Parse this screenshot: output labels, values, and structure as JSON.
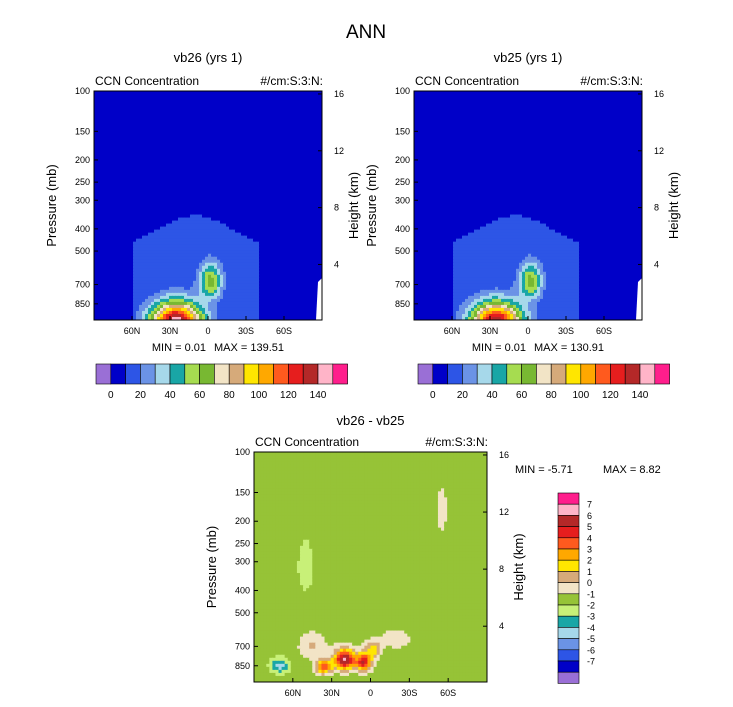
{
  "page_title": "ANN",
  "colors": {
    "background": "#ffffff",
    "conc_scale": [
      "#9a6fd6",
      "#0000c8",
      "#2d55e6",
      "#6b93e6",
      "#a6d8ea",
      "#19a6a6",
      "#a6dc50",
      "#78b832",
      "#f2e4c6",
      "#d6aa7a",
      "#ffe600",
      "#ffa800",
      "#ff5a1e",
      "#e61e1e",
      "#b42828",
      "#ffb4c8",
      "#ff1e8c"
    ],
    "diff_scale": [
      "#9a6fd6",
      "#0000c8",
      "#2d55e6",
      "#6b93e6",
      "#a6d8ea",
      "#19a6a6",
      "#c8f078",
      "#96c337",
      "#f2e4c6",
      "#d6aa7a",
      "#ffe600",
      "#ffa800",
      "#ff5a1e",
      "#e61e1e",
      "#b42828",
      "#ffb4c8",
      "#ff1e8c"
    ]
  },
  "chart_data": [
    {
      "type": "contour",
      "title": "vb26 (yrs 1)",
      "left_label": "CCN Concentration",
      "right_label": "#/cm:S:3:N:",
      "ylabel": "Pressure (mb)",
      "y2label": "Height (km)",
      "x_ticks": [
        "60N",
        "30N",
        "0",
        "30S",
        "60S"
      ],
      "x_values": [
        60,
        30,
        0,
        -30,
        -60
      ],
      "xlim": [
        90,
        -90
      ],
      "y_ticks": [
        "100",
        "150",
        "200",
        "250",
        "300",
        "400",
        "500",
        "700",
        "850"
      ],
      "y_values": [
        100,
        150,
        200,
        250,
        300,
        400,
        500,
        700,
        850
      ],
      "ylim": [
        100,
        1000
      ],
      "y2_ticks": [
        "16",
        "12",
        "8",
        "4"
      ],
      "y2_values": [
        16,
        12,
        8,
        4
      ],
      "min_label": "MIN =  0.01",
      "max_label": "MAX = 139.51",
      "min": 0.01,
      "max": 139.51,
      "peak_lat": 25,
      "levels": [
        0,
        10,
        20,
        30,
        40,
        50,
        60,
        70,
        80,
        90,
        100,
        110,
        120,
        130,
        140
      ],
      "colorbar_labels": [
        "0",
        "20",
        "40",
        "60",
        "80",
        "100",
        "120",
        "140"
      ]
    },
    {
      "type": "contour",
      "title": "vb25 (yrs 1)",
      "left_label": "CCN Concentration",
      "right_label": "#/cm:S:3:N:",
      "ylabel": "Pressure (mb)",
      "y2label": "Height (km)",
      "x_ticks": [
        "60N",
        "30N",
        "0",
        "30S",
        "60S"
      ],
      "x_values": [
        60,
        30,
        0,
        -30,
        -60
      ],
      "xlim": [
        90,
        -90
      ],
      "y_ticks": [
        "100",
        "150",
        "200",
        "250",
        "300",
        "400",
        "500",
        "700",
        "850"
      ],
      "y_values": [
        100,
        150,
        200,
        250,
        300,
        400,
        500,
        700,
        850
      ],
      "ylim": [
        100,
        1000
      ],
      "y2_ticks": [
        "16",
        "12",
        "8",
        "4"
      ],
      "y2_values": [
        16,
        12,
        8,
        4
      ],
      "min_label": "MIN =  0.01",
      "max_label": "MAX = 130.91",
      "min": 0.01,
      "max": 130.91,
      "peak_lat": 25,
      "levels": [
        0,
        10,
        20,
        30,
        40,
        50,
        60,
        70,
        80,
        90,
        100,
        110,
        120,
        130,
        140
      ],
      "colorbar_labels": [
        "0",
        "20",
        "40",
        "60",
        "80",
        "100",
        "120",
        "140"
      ]
    },
    {
      "type": "contour",
      "title": "vb26 - vb25",
      "left_label": "CCN Concentration",
      "right_label": "#/cm:S:3:N:",
      "ylabel": "Pressure (mb)",
      "y2label": "Height (km)",
      "x_ticks": [
        "60N",
        "30N",
        "0",
        "30S",
        "60S"
      ],
      "x_values": [
        60,
        30,
        0,
        -30,
        -60
      ],
      "xlim": [
        90,
        -90
      ],
      "y_ticks": [
        "100",
        "150",
        "200",
        "250",
        "300",
        "400",
        "500",
        "700",
        "850"
      ],
      "y_values": [
        100,
        150,
        200,
        250,
        300,
        400,
        500,
        700,
        850
      ],
      "ylim": [
        100,
        1000
      ],
      "y2_ticks": [
        "16",
        "12",
        "8",
        "4"
      ],
      "y2_values": [
        16,
        12,
        8,
        4
      ],
      "min_label": "MIN = -5.71",
      "max_label": "MAX =  8.82",
      "min": -5.71,
      "max": 8.82,
      "levels": [
        -7,
        -6,
        -5,
        -4,
        -3,
        -2,
        -1,
        0,
        1,
        2,
        3,
        4,
        5,
        6,
        7
      ],
      "colorbar_labels": [
        "7",
        "6",
        "5",
        "4",
        "3",
        "2",
        "1",
        "0",
        "-1",
        "-2",
        "-3",
        "-4",
        "-5",
        "-6",
        "-7"
      ]
    }
  ]
}
